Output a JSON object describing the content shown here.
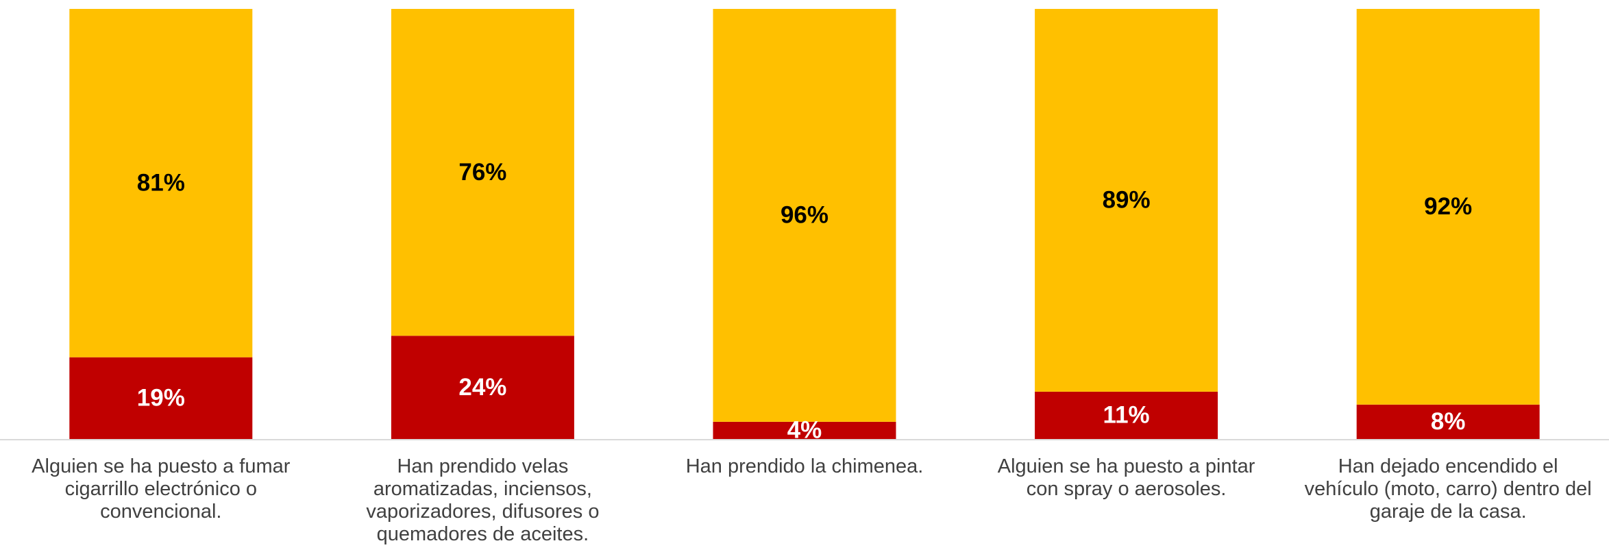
{
  "chart_data": {
    "type": "bar",
    "stacked": true,
    "orientation": "vertical",
    "categories": [
      [
        "Alguien se ha puesto a fumar",
        "cigarrillo electrónico o",
        "convencional."
      ],
      [
        "Han prendido velas",
        "aromatizadas, inciensos,",
        "vaporizadores, difusores o",
        "quemadores de aceites."
      ],
      [
        "Han prendido la chimenea."
      ],
      [
        "Alguien se ha puesto a pintar",
        "con spray o aerosoles."
      ],
      [
        "Han dejado encendido el",
        "vehículo (moto, carro) dentro del",
        "garaje de la casa."
      ]
    ],
    "series": [
      {
        "color": "#C00000",
        "label_color": "#FFFFFF",
        "values": [
          19,
          24,
          4,
          11,
          8
        ],
        "labels": [
          "19%",
          "24%",
          "4%",
          "11%",
          "8%"
        ]
      },
      {
        "color": "#FFC000",
        "label_color": "#000000",
        "values": [
          81,
          76,
          96,
          89,
          92
        ],
        "labels": [
          "81%",
          "76%",
          "96%",
          "89%",
          "92%"
        ]
      }
    ],
    "ylim": [
      0,
      100
    ],
    "grid": false,
    "legend": "none",
    "title": "",
    "xlabel": "",
    "ylabel": ""
  }
}
